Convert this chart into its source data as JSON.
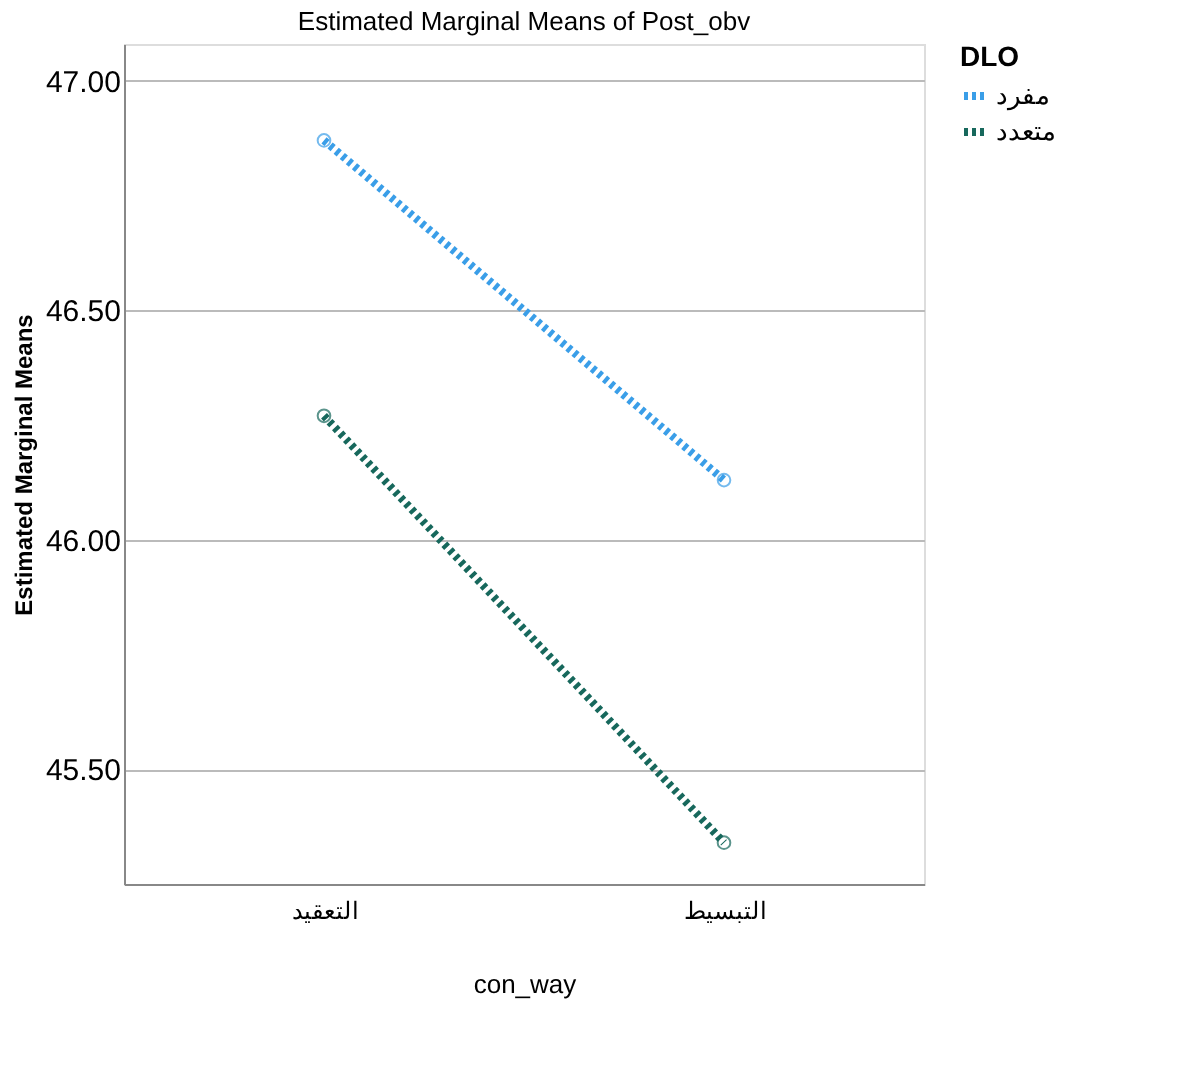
{
  "chart_data": {
    "type": "line",
    "title": "Estimated Marginal Means of Post_obv",
    "xlabel": "con_way",
    "ylabel": "Estimated Marginal Means",
    "legend_title": "DLO",
    "categories": [
      "التعقيد",
      "التبسيط"
    ],
    "series": [
      {
        "name": "مفرد",
        "color": "#3a9ee8",
        "values": [
          46.87,
          46.13
        ]
      },
      {
        "name": "متعدد",
        "color": "#17685c",
        "values": [
          46.27,
          45.34
        ]
      }
    ],
    "ylim": [
      45.25,
      47.08
    ],
    "yticks": [
      {
        "value": 45.5,
        "label": "45.50"
      },
      {
        "value": 46.0,
        "label": "46.00"
      },
      {
        "value": 46.5,
        "label": "46.50"
      },
      {
        "value": 47.0,
        "label": "47.00"
      }
    ],
    "grid": "y",
    "legend": "top right",
    "marker": "circle",
    "line_style": "dotted"
  }
}
